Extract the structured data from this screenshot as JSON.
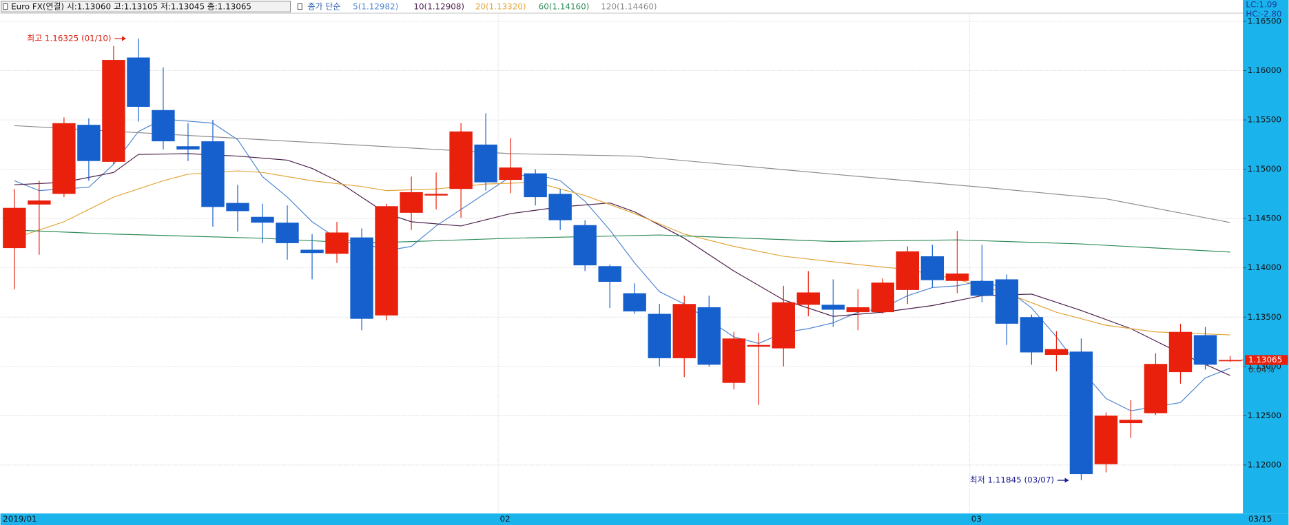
{
  "header": {
    "title": "Euro FX(연결) 시:1.13060 고:1.13105 저:1.13045 종:1.13065",
    "legend_title": "종가 단순",
    "lc": "LC:1.09",
    "hc": "HC:-2.80"
  },
  "chart_data": {
    "type": "candlestick",
    "open": [
      1.142,
      1.14642,
      1.1475,
      1.1545,
      1.15075,
      1.16133,
      1.156,
      1.15233,
      1.15283,
      1.14658,
      1.14517,
      1.14458,
      1.14183,
      1.14142,
      1.14308,
      1.13517,
      1.14558,
      1.14733,
      1.148,
      1.1525,
      1.14892,
      1.14958,
      1.1475,
      1.14433,
      1.14017,
      1.13742,
      1.13533,
      1.13083,
      1.136,
      1.12833,
      1.132,
      1.13183,
      1.13625,
      1.13625,
      1.1355,
      1.1355,
      1.13775,
      1.14117,
      1.13867,
      1.13867,
      1.13883,
      1.135,
      1.13117,
      1.1315,
      1.12008,
      1.12425,
      1.12525,
      1.12942,
      1.13317,
      1.1306
    ],
    "high": [
      1.148,
      1.14883,
      1.15525,
      1.15517,
      1.1625,
      1.16325,
      1.16033,
      1.15467,
      1.155,
      1.14842,
      1.1465,
      1.14633,
      1.14342,
      1.14467,
      1.144,
      1.1465,
      1.14925,
      1.14967,
      1.15467,
      1.15567,
      1.15317,
      1.15,
      1.148,
      1.14483,
      1.14033,
      1.13842,
      1.13633,
      1.13717,
      1.13717,
      1.1335,
      1.13342,
      1.13817,
      1.13967,
      1.13883,
      1.13783,
      1.13892,
      1.14217,
      1.14233,
      1.14375,
      1.14233,
      1.13933,
      1.13525,
      1.13358,
      1.13283,
      1.12533,
      1.12658,
      1.13133,
      1.13433,
      1.134,
      1.13105
    ],
    "low": [
      1.13783,
      1.14133,
      1.14717,
      1.14883,
      1.1505,
      1.15483,
      1.152,
      1.15083,
      1.14417,
      1.14367,
      1.1425,
      1.14083,
      1.13883,
      1.1405,
      1.13367,
      1.13467,
      1.14383,
      1.14592,
      1.14508,
      1.14783,
      1.14758,
      1.14633,
      1.14383,
      1.13967,
      1.13592,
      1.13533,
      1.13,
      1.12892,
      1.13,
      1.12767,
      1.12608,
      1.13,
      1.13508,
      1.134,
      1.13367,
      1.13533,
      1.13633,
      1.138,
      1.13742,
      1.1365,
      1.13217,
      1.13017,
      1.1295,
      1.11845,
      1.11925,
      1.12275,
      1.12508,
      1.12825,
      1.12967,
      1.13045
    ],
    "close": [
      1.14608,
      1.14683,
      1.15467,
      1.15083,
      1.16108,
      1.15633,
      1.15283,
      1.152,
      1.14617,
      1.14575,
      1.14458,
      1.1425,
      1.1415,
      1.14358,
      1.13483,
      1.14625,
      1.14767,
      1.1475,
      1.15383,
      1.14867,
      1.15017,
      1.14717,
      1.14483,
      1.14025,
      1.13858,
      1.13558,
      1.13083,
      1.13633,
      1.13017,
      1.13283,
      1.13217,
      1.1365,
      1.1375,
      1.13575,
      1.136,
      1.1385,
      1.14167,
      1.13875,
      1.13942,
      1.13717,
      1.13433,
      1.13142,
      1.13175,
      1.11908,
      1.125,
      1.12458,
      1.13025,
      1.1335,
      1.13017,
      1.13065
    ],
    "up_color": "#e8200c",
    "down_color": "#1560cc",
    "ylim": [
      1.11508,
      1.16583
    ],
    "yticks": [
      {
        "value": 1.12,
        "label": "1.12000"
      },
      {
        "value": 1.125,
        "label": "1.12500"
      },
      {
        "value": 1.13,
        "label": "1.13000"
      },
      {
        "value": 1.135,
        "label": "1.13500"
      },
      {
        "value": 1.14,
        "label": "1.14000"
      },
      {
        "value": 1.145,
        "label": "1.14500"
      },
      {
        "value": 1.15,
        "label": "1.15000"
      },
      {
        "value": 1.155,
        "label": "1.15500"
      },
      {
        "value": 1.16,
        "label": "1.16000"
      },
      {
        "value": 1.165,
        "label": "1.16500"
      }
    ],
    "grid": true,
    "series": [
      {
        "name": "5(1.12982)",
        "color": "#4f86d0",
        "x": [
          0,
          1,
          3,
          4,
          5,
          6,
          8,
          9,
          10,
          11,
          12,
          13,
          14,
          15,
          16,
          17,
          18,
          19,
          20,
          21,
          22,
          23,
          24,
          25,
          26,
          27,
          28,
          29,
          30,
          31,
          32,
          33,
          34,
          35,
          36,
          37,
          38,
          39,
          40,
          41,
          42,
          43,
          44,
          45,
          46,
          47,
          48,
          49
        ],
        "values": [
          1.14883,
          1.14783,
          1.14817,
          1.1505,
          1.15383,
          1.15508,
          1.15467,
          1.153,
          1.14925,
          1.14717,
          1.14467,
          1.143,
          1.14258,
          1.14175,
          1.14217,
          1.14425,
          1.14592,
          1.14758,
          1.14925,
          1.1495,
          1.14883,
          1.14675,
          1.14383,
          1.1405,
          1.13758,
          1.13633,
          1.13467,
          1.133,
          1.13233,
          1.13342,
          1.13383,
          1.13442,
          1.1355,
          1.13592,
          1.13717,
          1.138,
          1.13817,
          1.13867,
          1.13783,
          1.13592,
          1.133,
          1.12967,
          1.12675,
          1.1255,
          1.12592,
          1.12633,
          1.12883,
          1.12982
        ]
      },
      {
        "name": "10(1.12908)",
        "color": "#4a1f4a",
        "x": [
          0,
          2,
          4,
          5,
          7,
          9,
          11,
          12,
          13,
          15,
          16,
          18,
          20,
          22,
          24,
          25,
          27,
          29,
          31,
          33,
          35,
          37,
          39,
          41,
          43,
          45,
          47,
          49
        ],
        "values": [
          1.14842,
          1.14867,
          1.14967,
          1.1515,
          1.15158,
          1.15133,
          1.15092,
          1.15008,
          1.14883,
          1.1455,
          1.14467,
          1.14425,
          1.1455,
          1.14617,
          1.14658,
          1.14567,
          1.143,
          1.13967,
          1.13675,
          1.13508,
          1.1355,
          1.13617,
          1.13717,
          1.13733,
          1.13567,
          1.13383,
          1.13133,
          1.12908
        ]
      },
      {
        "name": "20(1.13320)",
        "color": "#e2a53a",
        "x": [
          0,
          2,
          4,
          6,
          7,
          9,
          10,
          12,
          14,
          15,
          17,
          19,
          21,
          23,
          25,
          27,
          29,
          31,
          34,
          36,
          38,
          40,
          42,
          44,
          46,
          49
        ],
        "values": [
          1.143,
          1.14467,
          1.14717,
          1.14883,
          1.1495,
          1.14983,
          1.14967,
          1.14883,
          1.14825,
          1.14783,
          1.148,
          1.1485,
          1.14867,
          1.14733,
          1.1455,
          1.14342,
          1.14217,
          1.14117,
          1.14033,
          1.13983,
          1.13883,
          1.13742,
          1.1355,
          1.13417,
          1.1335,
          1.1332
        ]
      },
      {
        "name": "60(1.14160)",
        "color": "#2e8b57",
        "x": [
          0,
          4,
          10,
          14,
          20,
          26,
          33,
          38,
          43,
          49
        ],
        "values": [
          1.14383,
          1.14342,
          1.143,
          1.1425,
          1.143,
          1.14333,
          1.14267,
          1.14283,
          1.14242,
          1.1416
        ]
      },
      {
        "name": "120(1.14460)",
        "color": "#8c8c8c",
        "x": [
          0,
          10,
          20,
          25,
          33,
          39,
          44,
          49
        ],
        "values": [
          1.15442,
          1.153,
          1.15158,
          1.15133,
          1.1495,
          1.14817,
          1.147,
          1.1446
        ]
      }
    ],
    "x_labels": [
      {
        "index": 0,
        "label": "2019/01"
      },
      {
        "index": 20,
        "label": "02"
      },
      {
        "index": 39,
        "label": "03"
      },
      {
        "index": 49,
        "label": "03/15"
      }
    ],
    "annotations": [
      {
        "text": "최고 1.16325 (01/10)",
        "index": 5,
        "value": 1.16325,
        "color": "#e02010"
      },
      {
        "text": "최저 1.11845 (03/07)",
        "index": 43,
        "value": 1.11845,
        "color": "#1a1a90"
      }
    ],
    "last_price": 1.13065,
    "last_change": "0.04%"
  }
}
